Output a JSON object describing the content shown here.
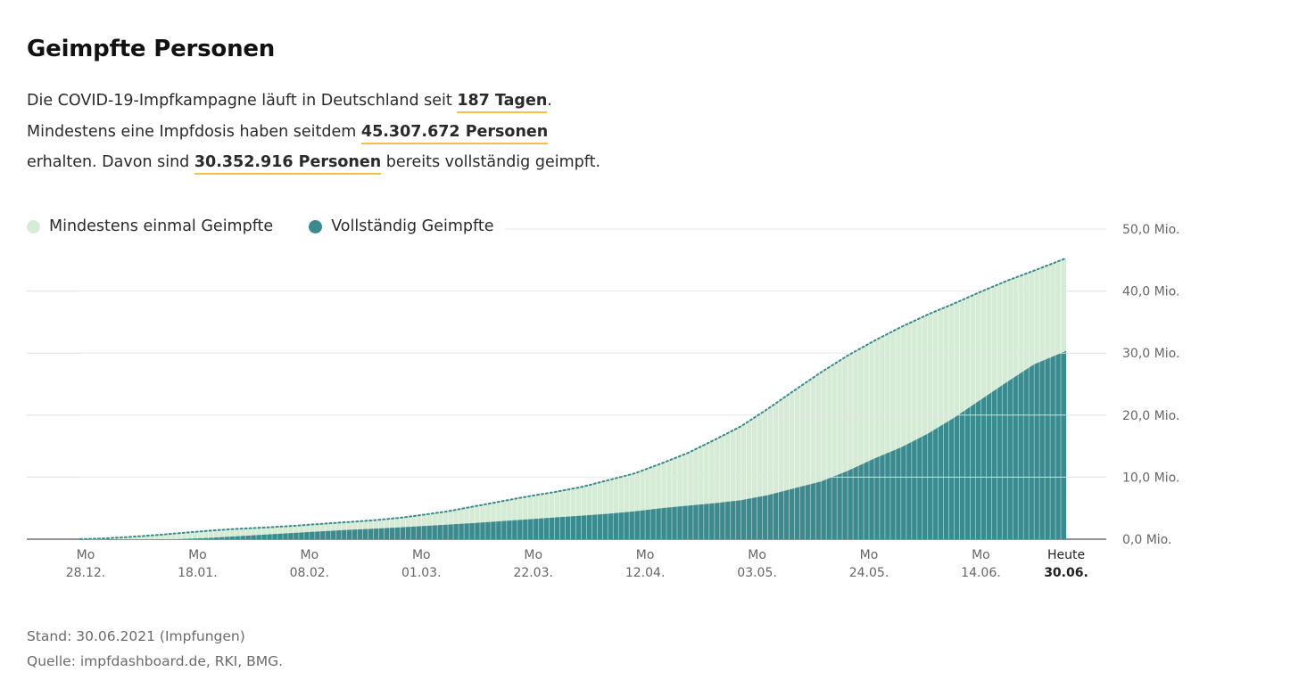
{
  "header": {
    "title": "Geimpfte Personen",
    "intro": {
      "p1_pre": "Die COVID-19-Impfkampagne läuft in Deutschland seit ",
      "p1_hl": "187 Tagen",
      "p1_post": ".",
      "p2_pre": "Mindestens eine Impfdosis haben seitdem ",
      "p2_hl": "45.307.672 Personen",
      "p3_pre": "erhalten. Davon sind ",
      "p3_hl": "30.352.916 Personen",
      "p3_post": " bereits vollständig geimpft."
    }
  },
  "legend": {
    "first": "Mindestens einmal Geimpfte",
    "full": "Vollständig Geimpfte"
  },
  "colors": {
    "first": "#d5ebd5",
    "full": "#3a8a8e",
    "highlight": "#f2c14a",
    "axis": "#666666"
  },
  "footer": {
    "stand": "Stand: 30.06.2021 (Impfungen)",
    "quelle": "Quelle: impfdashboard.de, RKI, BMG."
  },
  "chart_data": {
    "type": "area",
    "x_start": "2020-12-27",
    "x_end": "2021-06-30",
    "unit": "Mio.",
    "ylim": [
      0,
      50
    ],
    "yticks": [
      {
        "value": 0,
        "label": "0,0 Mio."
      },
      {
        "value": 10,
        "label": "10,0 Mio."
      },
      {
        "value": 20,
        "label": "20,0 Mio."
      },
      {
        "value": 30,
        "label": "30,0 Mio."
      },
      {
        "value": 40,
        "label": "40,0 Mio."
      },
      {
        "value": 50,
        "label": "50,0 Mio."
      }
    ],
    "xticks": [
      {
        "date": "2020-12-28",
        "top": "Mo",
        "bottom": "28.12."
      },
      {
        "date": "2021-01-18",
        "top": "Mo",
        "bottom": "18.01."
      },
      {
        "date": "2021-02-08",
        "top": "Mo",
        "bottom": "08.02."
      },
      {
        "date": "2021-03-01",
        "top": "Mo",
        "bottom": "01.03."
      },
      {
        "date": "2021-03-22",
        "top": "Mo",
        "bottom": "22.03."
      },
      {
        "date": "2021-04-12",
        "top": "Mo",
        "bottom": "12.04."
      },
      {
        "date": "2021-05-03",
        "top": "Mo",
        "bottom": "03.05."
      },
      {
        "date": "2021-05-24",
        "top": "Mo",
        "bottom": "24.05."
      },
      {
        "date": "2021-06-14",
        "top": "Mo",
        "bottom": "14.06."
      },
      {
        "date": "2021-06-30",
        "top": "Heute",
        "bottom": "30.06.",
        "highlight": true
      }
    ],
    "series": [
      {
        "name": "Mindestens einmal Geimpfte",
        "points": [
          [
            "2020-12-27",
            0.02
          ],
          [
            "2020-12-31",
            0.1
          ],
          [
            "2021-01-05",
            0.35
          ],
          [
            "2021-01-10",
            0.65
          ],
          [
            "2021-01-15",
            1.0
          ],
          [
            "2021-01-20",
            1.35
          ],
          [
            "2021-01-25",
            1.65
          ],
          [
            "2021-01-31",
            1.9
          ],
          [
            "2021-02-05",
            2.15
          ],
          [
            "2021-02-10",
            2.45
          ],
          [
            "2021-02-15",
            2.75
          ],
          [
            "2021-02-20",
            3.05
          ],
          [
            "2021-02-25",
            3.45
          ],
          [
            "2021-03-01",
            3.9
          ],
          [
            "2021-03-06",
            4.5
          ],
          [
            "2021-03-11",
            5.3
          ],
          [
            "2021-03-16",
            6.1
          ],
          [
            "2021-03-21",
            6.9
          ],
          [
            "2021-03-26",
            7.6
          ],
          [
            "2021-03-31",
            8.4
          ],
          [
            "2021-04-05",
            9.5
          ],
          [
            "2021-04-10",
            10.6
          ],
          [
            "2021-04-15",
            12.2
          ],
          [
            "2021-04-20",
            13.9
          ],
          [
            "2021-04-25",
            16.0
          ],
          [
            "2021-04-30",
            18.2
          ],
          [
            "2021-05-05",
            21.0
          ],
          [
            "2021-05-10",
            24.0
          ],
          [
            "2021-05-15",
            26.9
          ],
          [
            "2021-05-20",
            29.6
          ],
          [
            "2021-05-25",
            32.0
          ],
          [
            "2021-05-30",
            34.2
          ],
          [
            "2021-06-04",
            36.2
          ],
          [
            "2021-06-09",
            38.0
          ],
          [
            "2021-06-14",
            39.9
          ],
          [
            "2021-06-19",
            41.7
          ],
          [
            "2021-06-24",
            43.3
          ],
          [
            "2021-06-30",
            45.307672
          ]
        ]
      },
      {
        "name": "Vollständig Geimpfte",
        "points": [
          [
            "2020-12-27",
            0.0
          ],
          [
            "2021-01-14",
            0.0
          ],
          [
            "2021-01-20",
            0.2
          ],
          [
            "2021-01-25",
            0.45
          ],
          [
            "2021-01-31",
            0.75
          ],
          [
            "2021-02-05",
            1.0
          ],
          [
            "2021-02-10",
            1.25
          ],
          [
            "2021-02-15",
            1.5
          ],
          [
            "2021-02-20",
            1.7
          ],
          [
            "2021-02-25",
            1.9
          ],
          [
            "2021-03-01",
            2.1
          ],
          [
            "2021-03-06",
            2.35
          ],
          [
            "2021-03-11",
            2.6
          ],
          [
            "2021-03-16",
            2.9
          ],
          [
            "2021-03-21",
            3.2
          ],
          [
            "2021-03-26",
            3.5
          ],
          [
            "2021-03-31",
            3.8
          ],
          [
            "2021-04-05",
            4.1
          ],
          [
            "2021-04-10",
            4.5
          ],
          [
            "2021-04-15",
            5.0
          ],
          [
            "2021-04-20",
            5.4
          ],
          [
            "2021-04-25",
            5.8
          ],
          [
            "2021-04-30",
            6.3
          ],
          [
            "2021-05-05",
            7.1
          ],
          [
            "2021-05-10",
            8.2
          ],
          [
            "2021-05-15",
            9.3
          ],
          [
            "2021-05-20",
            11.0
          ],
          [
            "2021-05-25",
            13.0
          ],
          [
            "2021-05-30",
            14.8
          ],
          [
            "2021-06-04",
            17.0
          ],
          [
            "2021-06-09",
            19.6
          ],
          [
            "2021-06-14",
            22.5
          ],
          [
            "2021-06-19",
            25.4
          ],
          [
            "2021-06-24",
            28.2
          ],
          [
            "2021-06-30",
            30.352916
          ]
        ]
      }
    ]
  }
}
